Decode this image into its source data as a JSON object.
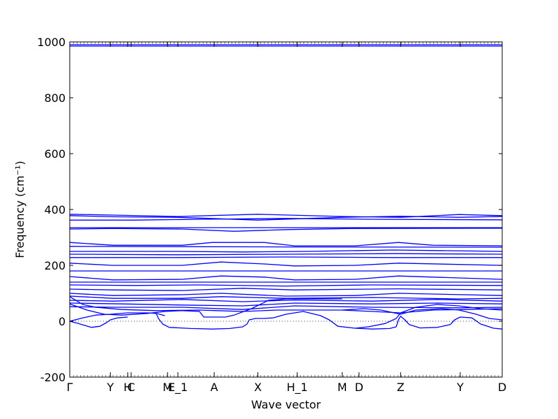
{
  "chart_data": {
    "type": "line",
    "title": "",
    "xlabel": "Wave vector",
    "ylabel": "Frequency (cm⁻¹)",
    "ylim": [
      -200,
      1000
    ],
    "yticks": [
      -200,
      0,
      200,
      400,
      600,
      800,
      1000
    ],
    "zero_line": true,
    "grid": false,
    "line_color": "#0000ff",
    "x_points": [
      {
        "label": "Γ",
        "x": 0.0
      },
      {
        "label": "Y",
        "x": 0.094
      },
      {
        "label": "H",
        "x": 0.134
      },
      {
        "label": "C",
        "x": 0.142
      },
      {
        "label": "M",
        "x": 0.226
      },
      {
        "label": "E_1",
        "x": 0.25
      },
      {
        "label": "A",
        "x": 0.334
      },
      {
        "label": "X",
        "x": 0.435
      },
      {
        "label": "H_1",
        "x": 0.526
      },
      {
        "label": "M",
        "x": 0.63
      },
      {
        "label": "D",
        "x": 0.669
      },
      {
        "label": "Z",
        "x": 0.765
      },
      {
        "label": "Y",
        "x": 0.903
      },
      {
        "label": "D",
        "x": 1.0
      }
    ],
    "series": [
      {
        "values": [
          {
            "x": 0.0,
            "y": 985
          },
          {
            "x": 0.5,
            "y": 985
          },
          {
            "x": 1.0,
            "y": 985
          }
        ]
      },
      {
        "values": [
          {
            "x": 0.0,
            "y": 990
          },
          {
            "x": 0.5,
            "y": 990
          },
          {
            "x": 1.0,
            "y": 990
          }
        ]
      },
      {
        "values": [
          {
            "x": 0.0,
            "y": 383
          },
          {
            "x": 0.1,
            "y": 380
          },
          {
            "x": 0.25,
            "y": 375
          },
          {
            "x": 0.435,
            "y": 383
          },
          {
            "x": 0.63,
            "y": 375
          },
          {
            "x": 0.765,
            "y": 372
          },
          {
            "x": 0.9,
            "y": 382
          },
          {
            "x": 1.0,
            "y": 378
          }
        ]
      },
      {
        "values": [
          {
            "x": 0.0,
            "y": 378
          },
          {
            "x": 0.1,
            "y": 374
          },
          {
            "x": 0.25,
            "y": 372
          },
          {
            "x": 0.435,
            "y": 362
          },
          {
            "x": 0.63,
            "y": 372
          },
          {
            "x": 0.765,
            "y": 376
          },
          {
            "x": 0.9,
            "y": 372
          },
          {
            "x": 1.0,
            "y": 375
          }
        ]
      },
      {
        "values": [
          {
            "x": 0.0,
            "y": 362
          },
          {
            "x": 0.15,
            "y": 362
          },
          {
            "x": 0.3,
            "y": 365
          },
          {
            "x": 0.5,
            "y": 368
          },
          {
            "x": 0.7,
            "y": 365
          },
          {
            "x": 1.0,
            "y": 363
          }
        ]
      },
      {
        "values": [
          {
            "x": 0.0,
            "y": 335
          },
          {
            "x": 1.0,
            "y": 335
          }
        ]
      },
      {
        "values": [
          {
            "x": 0.0,
            "y": 330
          },
          {
            "x": 0.1,
            "y": 332
          },
          {
            "x": 0.26,
            "y": 330
          },
          {
            "x": 0.38,
            "y": 322
          },
          {
            "x": 0.5,
            "y": 328
          },
          {
            "x": 0.65,
            "y": 332
          },
          {
            "x": 1.0,
            "y": 333
          }
        ]
      },
      {
        "values": [
          {
            "x": 0.0,
            "y": 282
          },
          {
            "x": 0.1,
            "y": 272
          },
          {
            "x": 0.26,
            "y": 272
          },
          {
            "x": 0.33,
            "y": 282
          },
          {
            "x": 0.45,
            "y": 282
          },
          {
            "x": 0.52,
            "y": 270
          },
          {
            "x": 0.66,
            "y": 270
          },
          {
            "x": 0.76,
            "y": 282
          },
          {
            "x": 0.84,
            "y": 272
          },
          {
            "x": 1.0,
            "y": 270
          }
        ]
      },
      {
        "values": [
          {
            "x": 0.0,
            "y": 268
          },
          {
            "x": 0.5,
            "y": 266
          },
          {
            "x": 1.0,
            "y": 265
          }
        ]
      },
      {
        "values": [
          {
            "x": 0.0,
            "y": 250
          },
          {
            "x": 0.25,
            "y": 250
          },
          {
            "x": 0.4,
            "y": 248
          },
          {
            "x": 0.55,
            "y": 250
          },
          {
            "x": 0.75,
            "y": 255
          },
          {
            "x": 1.0,
            "y": 250
          }
        ]
      },
      {
        "values": [
          {
            "x": 0.0,
            "y": 240
          },
          {
            "x": 0.25,
            "y": 238
          },
          {
            "x": 0.5,
            "y": 240
          },
          {
            "x": 0.75,
            "y": 242
          },
          {
            "x": 1.0,
            "y": 240
          }
        ]
      },
      {
        "values": [
          {
            "x": 0.0,
            "y": 228
          },
          {
            "x": 0.25,
            "y": 228
          },
          {
            "x": 0.5,
            "y": 230
          },
          {
            "x": 0.75,
            "y": 228
          },
          {
            "x": 1.0,
            "y": 228
          }
        ]
      },
      {
        "values": [
          {
            "x": 0.0,
            "y": 208
          },
          {
            "x": 0.1,
            "y": 200
          },
          {
            "x": 0.26,
            "y": 200
          },
          {
            "x": 0.35,
            "y": 212
          },
          {
            "x": 0.45,
            "y": 205
          },
          {
            "x": 0.52,
            "y": 198
          },
          {
            "x": 0.66,
            "y": 200
          },
          {
            "x": 0.76,
            "y": 208
          },
          {
            "x": 1.0,
            "y": 200
          }
        ]
      },
      {
        "values": [
          {
            "x": 0.0,
            "y": 180
          },
          {
            "x": 1.0,
            "y": 180
          }
        ]
      },
      {
        "values": [
          {
            "x": 0.0,
            "y": 160
          },
          {
            "x": 0.1,
            "y": 148
          },
          {
            "x": 0.26,
            "y": 150
          },
          {
            "x": 0.35,
            "y": 162
          },
          {
            "x": 0.45,
            "y": 158
          },
          {
            "x": 0.52,
            "y": 148
          },
          {
            "x": 0.66,
            "y": 150
          },
          {
            "x": 0.76,
            "y": 162
          },
          {
            "x": 0.9,
            "y": 155
          },
          {
            "x": 1.0,
            "y": 150
          }
        ]
      },
      {
        "values": [
          {
            "x": 0.0,
            "y": 140
          },
          {
            "x": 0.5,
            "y": 140
          },
          {
            "x": 1.0,
            "y": 140
          }
        ]
      },
      {
        "values": [
          {
            "x": 0.0,
            "y": 130
          },
          {
            "x": 0.15,
            "y": 128
          },
          {
            "x": 0.3,
            "y": 130
          },
          {
            "x": 0.5,
            "y": 126
          },
          {
            "x": 0.7,
            "y": 130
          },
          {
            "x": 1.0,
            "y": 128
          }
        ]
      },
      {
        "values": [
          {
            "x": 0.0,
            "y": 115
          },
          {
            "x": 0.1,
            "y": 112
          },
          {
            "x": 0.26,
            "y": 110
          },
          {
            "x": 0.4,
            "y": 118
          },
          {
            "x": 0.52,
            "y": 112
          },
          {
            "x": 0.76,
            "y": 116
          },
          {
            "x": 1.0,
            "y": 112
          }
        ]
      },
      {
        "values": [
          {
            "x": 0.0,
            "y": 100
          },
          {
            "x": 0.1,
            "y": 92
          },
          {
            "x": 0.26,
            "y": 95
          },
          {
            "x": 0.35,
            "y": 100
          },
          {
            "x": 0.5,
            "y": 90
          },
          {
            "x": 0.66,
            "y": 92
          },
          {
            "x": 0.76,
            "y": 100
          },
          {
            "x": 1.0,
            "y": 92
          }
        ]
      },
      {
        "values": [
          {
            "x": 0.0,
            "y": 90
          },
          {
            "x": 0.1,
            "y": 82
          },
          {
            "x": 0.26,
            "y": 82
          },
          {
            "x": 0.35,
            "y": 88
          },
          {
            "x": 0.5,
            "y": 82
          },
          {
            "x": 0.7,
            "y": 85
          },
          {
            "x": 0.9,
            "y": 80
          },
          {
            "x": 1.0,
            "y": 82
          }
        ]
      },
      {
        "values": [
          {
            "x": 0.0,
            "y": 75
          },
          {
            "x": 0.1,
            "y": 72
          },
          {
            "x": 0.26,
            "y": 78
          },
          {
            "x": 0.4,
            "y": 70
          },
          {
            "x": 0.52,
            "y": 76
          },
          {
            "x": 0.7,
            "y": 72
          },
          {
            "x": 0.85,
            "y": 78
          },
          {
            "x": 1.0,
            "y": 72
          }
        ]
      },
      {
        "values": [
          {
            "x": 0.0,
            "y": 65
          },
          {
            "x": 0.12,
            "y": 62
          },
          {
            "x": 0.26,
            "y": 58
          },
          {
            "x": 0.4,
            "y": 55
          },
          {
            "x": 0.52,
            "y": 65
          },
          {
            "x": 0.7,
            "y": 62
          },
          {
            "x": 0.85,
            "y": 65
          },
          {
            "x": 1.0,
            "y": 62
          }
        ]
      },
      {
        "values": [
          {
            "x": 0.0,
            "y": 52
          },
          {
            "x": 0.1,
            "y": 50
          },
          {
            "x": 0.26,
            "y": 50
          },
          {
            "x": 0.4,
            "y": 42
          },
          {
            "x": 0.52,
            "y": 55
          },
          {
            "x": 0.7,
            "y": 50
          },
          {
            "x": 0.9,
            "y": 48
          },
          {
            "x": 1.0,
            "y": 50
          }
        ]
      },
      {
        "values": [
          {
            "x": 0.0,
            "y": 88
          },
          {
            "x": 0.03,
            "y": 60
          },
          {
            "x": 0.06,
            "y": 50
          },
          {
            "x": 0.12,
            "y": 42
          },
          {
            "x": 0.2,
            "y": 38
          },
          {
            "x": 0.3,
            "y": 40
          },
          {
            "x": 0.34,
            "y": 38
          },
          {
            "x": 0.4,
            "y": 35
          },
          {
            "x": 0.48,
            "y": 40
          },
          {
            "x": 0.55,
            "y": 40
          },
          {
            "x": 0.63,
            "y": 40
          },
          {
            "x": 0.7,
            "y": 35
          },
          {
            "x": 0.765,
            "y": 30
          },
          {
            "x": 0.84,
            "y": 40
          },
          {
            "x": 0.92,
            "y": 42
          },
          {
            "x": 1.0,
            "y": 45
          }
        ]
      },
      {
        "values": [
          {
            "x": 0.0,
            "y": 62
          },
          {
            "x": 0.04,
            "y": 40
          },
          {
            "x": 0.08,
            "y": 25
          },
          {
            "x": 0.12,
            "y": 22
          },
          {
            "x": 0.18,
            "y": 28
          },
          {
            "x": 0.22,
            "y": 35
          },
          {
            "x": 0.26,
            "y": 38
          }
        ]
      },
      {
        "values": [
          {
            "x": 0.0,
            "y": 0
          },
          {
            "x": 0.03,
            "y": 12
          },
          {
            "x": 0.06,
            "y": 22
          },
          {
            "x": 0.094,
            "y": 25
          },
          {
            "x": 0.134,
            "y": 30
          },
          {
            "x": 0.18,
            "y": 30
          },
          {
            "x": 0.2,
            "y": 28
          },
          {
            "x": 0.22,
            "y": 20
          }
        ]
      },
      {
        "values": [
          {
            "x": 0.0,
            "y": 0
          },
          {
            "x": 0.02,
            "y": -8
          },
          {
            "x": 0.05,
            "y": -22
          },
          {
            "x": 0.07,
            "y": -18
          },
          {
            "x": 0.085,
            "y": -5
          },
          {
            "x": 0.094,
            "y": 5
          },
          {
            "x": 0.11,
            "y": 12
          },
          {
            "x": 0.134,
            "y": 15
          }
        ]
      },
      {
        "values": [
          {
            "x": 0.2,
            "y": 28
          },
          {
            "x": 0.205,
            "y": 10
          },
          {
            "x": 0.215,
            "y": -10
          },
          {
            "x": 0.23,
            "y": -22
          },
          {
            "x": 0.28,
            "y": -26
          },
          {
            "x": 0.33,
            "y": -28
          },
          {
            "x": 0.37,
            "y": -26
          },
          {
            "x": 0.4,
            "y": -20
          },
          {
            "x": 0.41,
            "y": -10
          },
          {
            "x": 0.415,
            "y": 5
          },
          {
            "x": 0.43,
            "y": 10
          },
          {
            "x": 0.45,
            "y": 10
          },
          {
            "x": 0.47,
            "y": 12
          }
        ]
      },
      {
        "values": [
          {
            "x": 0.26,
            "y": 38
          },
          {
            "x": 0.3,
            "y": 35
          },
          {
            "x": 0.31,
            "y": 15
          },
          {
            "x": 0.33,
            "y": 15
          },
          {
            "x": 0.36,
            "y": 15
          },
          {
            "x": 0.38,
            "y": 22
          },
          {
            "x": 0.42,
            "y": 45
          },
          {
            "x": 0.46,
            "y": 75
          },
          {
            "x": 0.5,
            "y": 80
          },
          {
            "x": 0.63,
            "y": 80
          }
        ]
      },
      {
        "values": [
          {
            "x": 0.47,
            "y": 12
          },
          {
            "x": 0.5,
            "y": 25
          },
          {
            "x": 0.54,
            "y": 35
          },
          {
            "x": 0.58,
            "y": 20
          },
          {
            "x": 0.6,
            "y": 5
          },
          {
            "x": 0.62,
            "y": -18
          },
          {
            "x": 0.66,
            "y": -25
          },
          {
            "x": 0.7,
            "y": -28
          },
          {
            "x": 0.74,
            "y": -26
          },
          {
            "x": 0.755,
            "y": -20
          }
        ]
      },
      {
        "values": [
          {
            "x": 0.755,
            "y": -20
          },
          {
            "x": 0.76,
            "y": 5
          },
          {
            "x": 0.765,
            "y": 18
          },
          {
            "x": 0.775,
            "y": 5
          },
          {
            "x": 0.785,
            "y": -12
          },
          {
            "x": 0.81,
            "y": -24
          },
          {
            "x": 0.85,
            "y": -22
          },
          {
            "x": 0.88,
            "y": -12
          },
          {
            "x": 0.89,
            "y": 5
          },
          {
            "x": 0.903,
            "y": 15
          },
          {
            "x": 0.93,
            "y": 12
          },
          {
            "x": 0.95,
            "y": -10
          },
          {
            "x": 0.98,
            "y": -25
          },
          {
            "x": 1.0,
            "y": -28
          }
        ]
      },
      {
        "values": [
          {
            "x": 0.66,
            "y": -25
          },
          {
            "x": 0.69,
            "y": -20
          },
          {
            "x": 0.73,
            "y": -8
          },
          {
            "x": 0.755,
            "y": 10
          },
          {
            "x": 0.765,
            "y": 30
          },
          {
            "x": 0.8,
            "y": 50
          },
          {
            "x": 0.85,
            "y": 60
          },
          {
            "x": 0.9,
            "y": 55
          },
          {
            "x": 0.95,
            "y": 45
          },
          {
            "x": 1.0,
            "y": 40
          }
        ]
      },
      {
        "values": [
          {
            "x": 0.63,
            "y": 40
          },
          {
            "x": 0.68,
            "y": 45
          },
          {
            "x": 0.72,
            "y": 40
          },
          {
            "x": 0.765,
            "y": 25
          },
          {
            "x": 0.8,
            "y": 40
          },
          {
            "x": 0.86,
            "y": 45
          },
          {
            "x": 0.9,
            "y": 40
          },
          {
            "x": 0.94,
            "y": 25
          },
          {
            "x": 0.97,
            "y": 10
          },
          {
            "x": 1.0,
            "y": 5
          }
        ]
      }
    ]
  }
}
